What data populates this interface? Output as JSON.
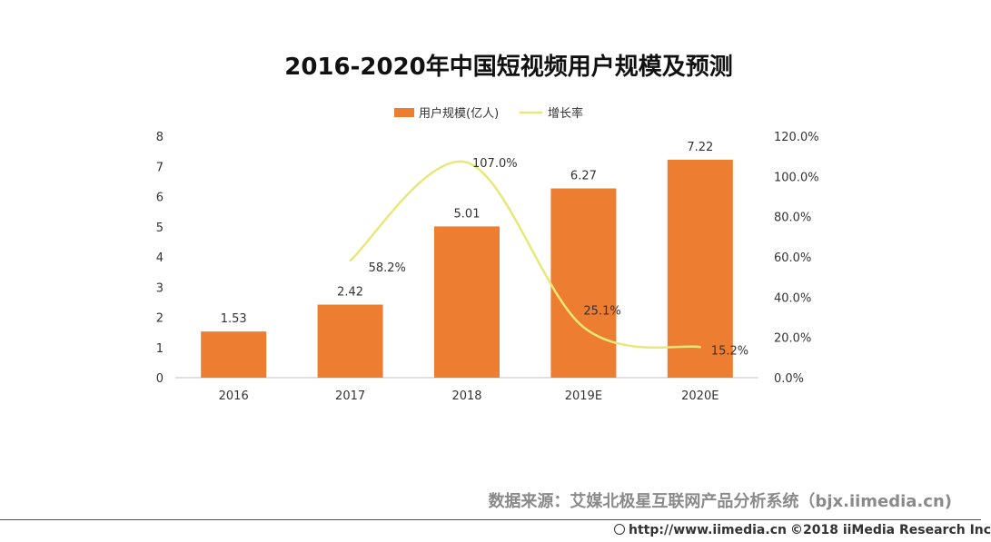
{
  "chart_data": {
    "type": "bar",
    "title": "2016-2020年中国短视频用户规模及预测",
    "categories": [
      "2016",
      "2017",
      "2018",
      "2019E",
      "2020E"
    ],
    "series": [
      {
        "name": "用户规模(亿人)",
        "kind": "bar",
        "axis": "left",
        "color": "#ed7d31",
        "values": [
          1.53,
          2.42,
          5.01,
          6.27,
          7.22
        ],
        "labels": [
          "1.53",
          "2.42",
          "5.01",
          "6.27",
          "7.22"
        ]
      },
      {
        "name": "增长率",
        "kind": "line",
        "axis": "right",
        "color": "#e8e87a",
        "values": [
          null,
          58.2,
          107.0,
          25.1,
          15.2
        ],
        "labels": [
          "",
          "58.2%",
          "107.0%",
          "25.1%",
          "15.2%"
        ]
      }
    ],
    "y_left": {
      "lim": [
        0,
        8
      ],
      "ticks": [
        "0",
        "1",
        "2",
        "3",
        "4",
        "5",
        "6",
        "7",
        "8"
      ]
    },
    "y_right": {
      "lim": [
        0,
        120
      ],
      "ticks": [
        "0.0%",
        "20.0%",
        "40.0%",
        "60.0%",
        "80.0%",
        "100.0%",
        "120.0%"
      ]
    },
    "legend": "top-center",
    "grid": false
  },
  "source": "数据来源：艾媒北极星互联网产品分析系统（bjx.iimedia.cn)",
  "footer": {
    "url": "http://www.iimedia.cn",
    "copyright": "©2018  iiMedia Research  Inc"
  }
}
